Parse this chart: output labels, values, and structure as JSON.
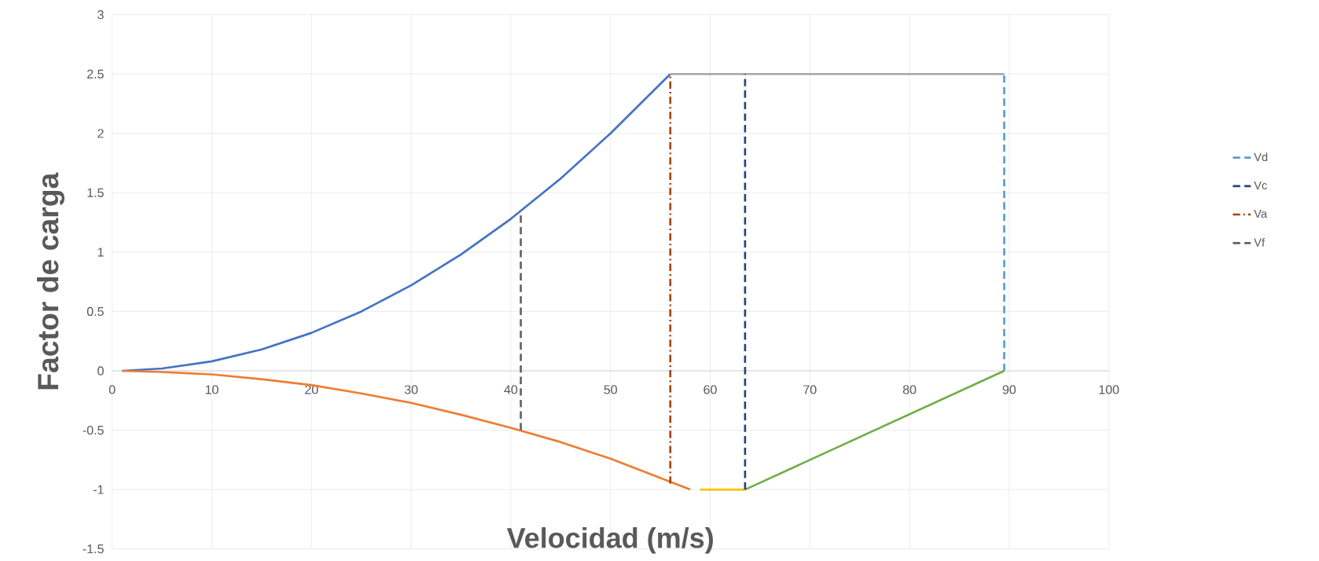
{
  "chart_data": {
    "type": "line",
    "xlabel": "Velocidad (m/s)",
    "ylabel": "Factor de carga",
    "xlim": [
      0,
      100
    ],
    "ylim": [
      -1.5,
      3
    ],
    "xticks": [
      0,
      10,
      20,
      30,
      40,
      50,
      60,
      70,
      80,
      90,
      100
    ],
    "yticks": [
      -1.5,
      -1,
      -0.5,
      0,
      0.5,
      1,
      1.5,
      2,
      2.5,
      3
    ],
    "grid": true,
    "legend": "right",
    "marker": "none",
    "series": [
      {
        "color": "#4472c4",
        "line_style": "solid",
        "x": [
          1,
          5,
          10,
          15,
          20,
          25,
          30,
          35,
          40,
          45,
          50,
          56
        ],
        "values": [
          0,
          0.02,
          0.08,
          0.18,
          0.32,
          0.5,
          0.72,
          0.98,
          1.28,
          1.62,
          2.0,
          2.5
        ]
      },
      {
        "color": "#a5a5a5",
        "line_style": "solid",
        "x": [
          56,
          89.5
        ],
        "values": [
          2.5,
          2.5
        ]
      },
      {
        "color": "#ed7d31",
        "line_style": "solid",
        "x": [
          1,
          5,
          10,
          15,
          20,
          25,
          30,
          35,
          40,
          45,
          50,
          58
        ],
        "values": [
          0,
          -0.01,
          -0.03,
          -0.07,
          -0.12,
          -0.19,
          -0.27,
          -0.37,
          -0.48,
          -0.6,
          -0.74,
          -1
        ]
      },
      {
        "color": "#ffc000",
        "line_style": "solid",
        "x": [
          59,
          63.5
        ],
        "values": [
          -1,
          -1
        ]
      },
      {
        "color": "#70ad47",
        "line_style": "solid",
        "x": [
          63.5,
          89.5
        ],
        "values": [
          -1,
          0
        ]
      },
      {
        "name": "Vd",
        "color": "#5b9bd5",
        "line_style": "dashed",
        "x": [
          89.5,
          89.5
        ],
        "values": [
          0,
          2.5
        ]
      },
      {
        "name": "Vc",
        "color": "#264478",
        "line_style": "dashed",
        "x": [
          63.5,
          63.5
        ],
        "values": [
          -1,
          2.5
        ]
      },
      {
        "name": "Va",
        "color": "#9e480e",
        "line_style": "dashdot",
        "x": [
          56,
          56
        ],
        "values": [
          -0.95,
          2.5
        ]
      },
      {
        "name": "Vf",
        "color": "#636363",
        "line_style": "dashed",
        "x": [
          41,
          41
        ],
        "values": [
          -0.5,
          1.33
        ]
      }
    ]
  }
}
